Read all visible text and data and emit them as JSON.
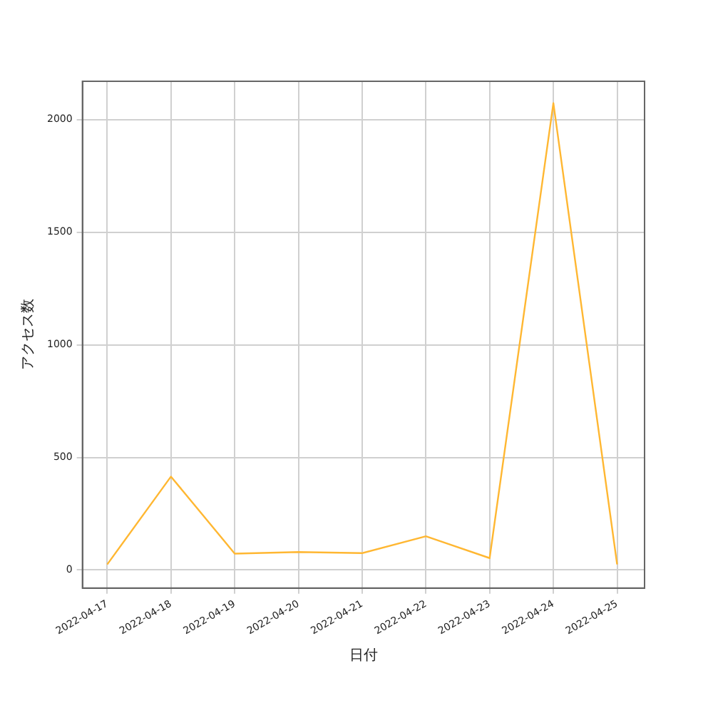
{
  "chart_data": {
    "type": "line",
    "xlabel": "日付",
    "ylabel": "アクセス数",
    "x": [
      "2022-04-17",
      "2022-04-18",
      "2022-04-19",
      "2022-04-20",
      "2022-04-21",
      "2022-04-22",
      "2022-04-23",
      "2022-04-24",
      "2022-04-25"
    ],
    "series": [
      {
        "color": "#ffb732",
        "values": [
          25,
          415,
          73,
          80,
          75,
          150,
          53,
          2073,
          25
        ]
      }
    ],
    "xlim": [
      "2022-04-16T14:40",
      "2022-04-25T10:20"
    ],
    "xticks": [
      "2022-04-17",
      "2022-04-18",
      "2022-04-19",
      "2022-04-20",
      "2022-04-21",
      "2022-04-22",
      "2022-04-23",
      "2022-04-24",
      "2022-04-25"
    ],
    "ylim": [
      -80,
      2170
    ],
    "yticks": [
      0,
      500,
      1000,
      1500,
      2000
    ],
    "grid": true,
    "marker": "none",
    "line_style": "solid"
  }
}
